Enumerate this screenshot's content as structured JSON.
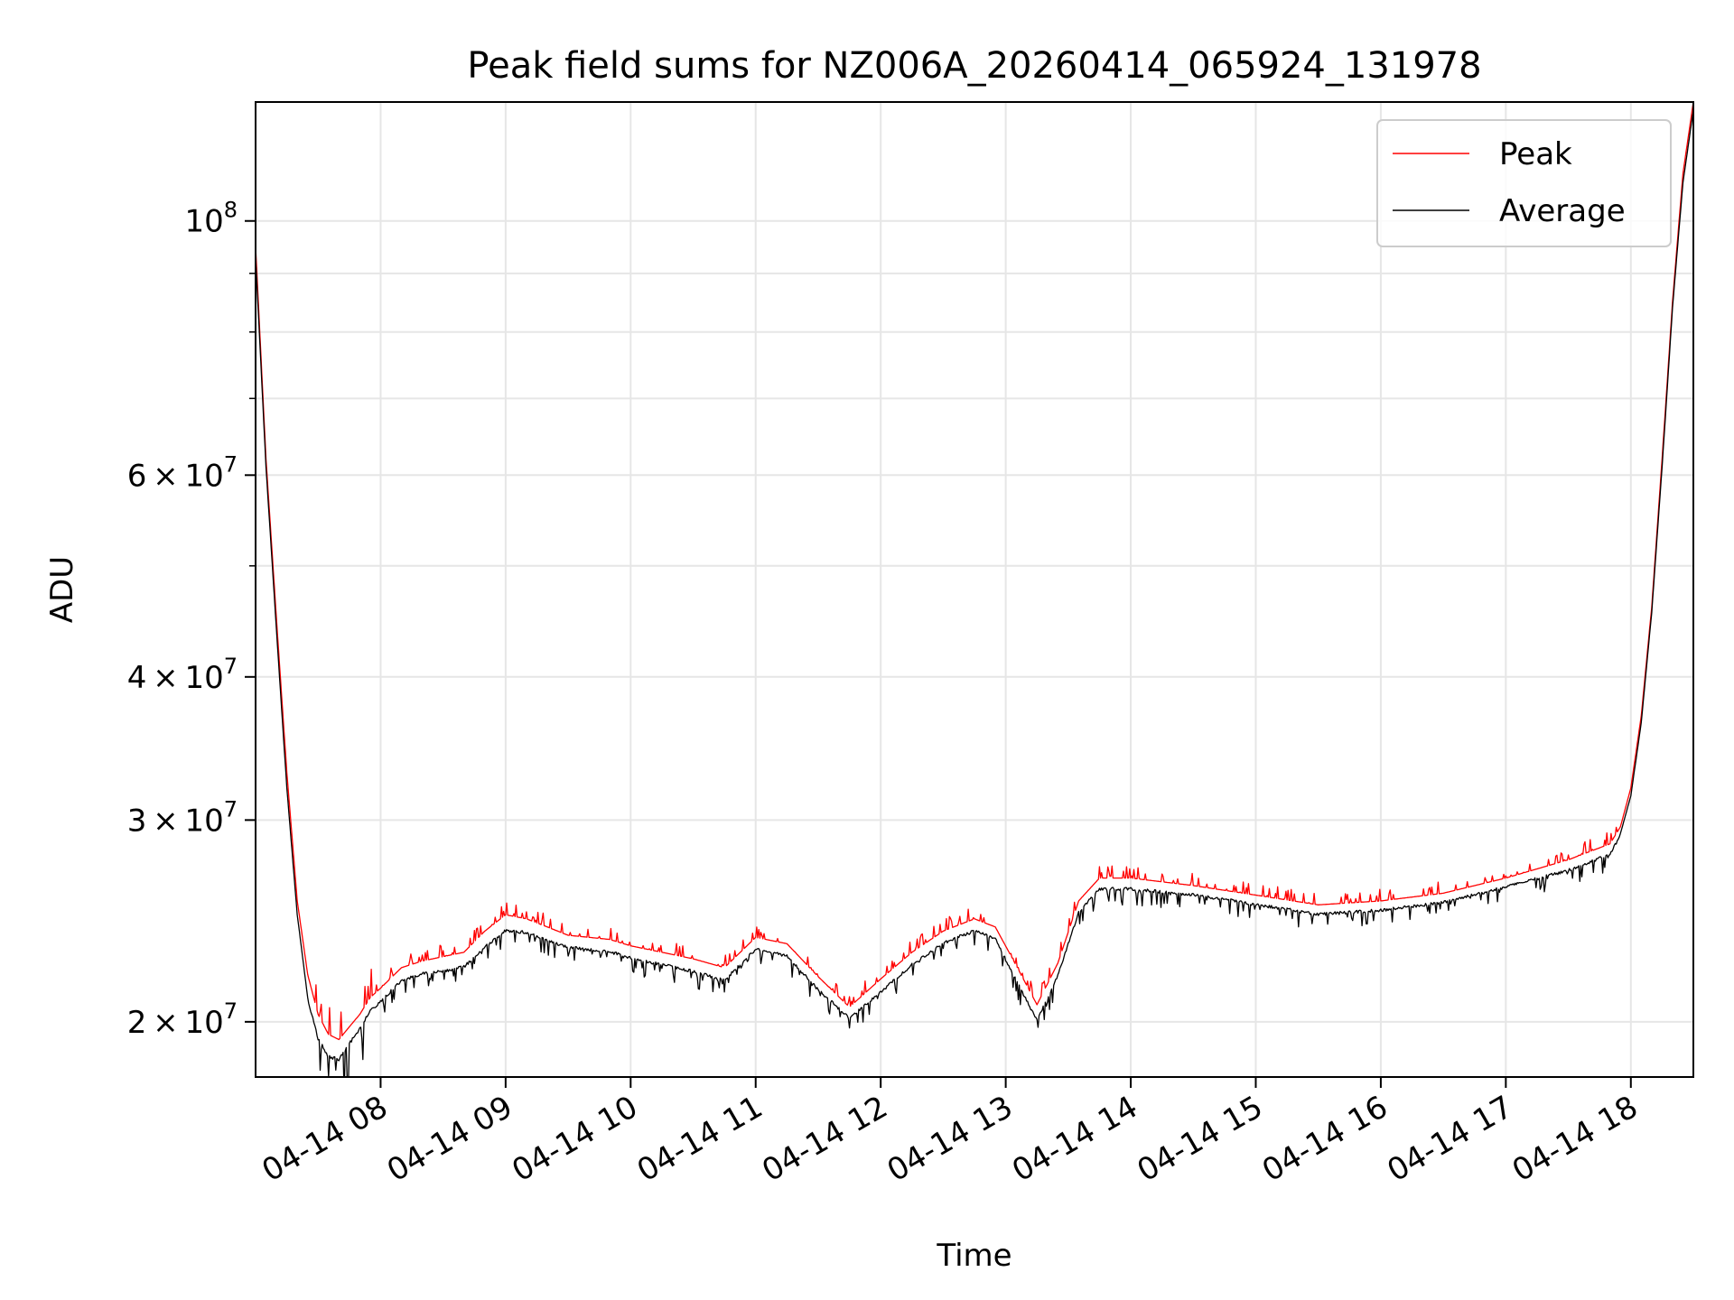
{
  "chart_data": {
    "type": "line",
    "title": "Peak field sums for NZ006A_20260414_065924_131978",
    "xlabel": "Time",
    "ylabel": "ADU",
    "yscale": "log",
    "ylim": [
      17900000,
      127000000
    ],
    "xlim": [
      "04-14 07:00",
      "04-14 18:30"
    ],
    "x_tick_labels": [
      "04-14 08",
      "04-14 09",
      "04-14 10",
      "04-14 11",
      "04-14 12",
      "04-14 13",
      "04-14 14",
      "04-14 15",
      "04-14 16",
      "04-14 17",
      "04-14 18"
    ],
    "x_ticks": [
      "04-14 08:00",
      "04-14 09:00",
      "04-14 10:00",
      "04-14 11:00",
      "04-14 12:00",
      "04-14 13:00",
      "04-14 14:00",
      "04-14 15:00",
      "04-14 16:00",
      "04-14 17:00",
      "04-14 18:00"
    ],
    "y_tick_labels": [
      {
        "value": 100000000,
        "mantissa": "",
        "base": "10",
        "exp": "8"
      },
      {
        "value": 60000000,
        "mantissa": "6",
        "base": "10",
        "exp": "7"
      },
      {
        "value": 40000000,
        "mantissa": "4",
        "base": "10",
        "exp": "7"
      },
      {
        "value": 30000000,
        "mantissa": "3",
        "base": "10",
        "exp": "7"
      },
      {
        "value": 20000000,
        "mantissa": "2",
        "base": "10",
        "exp": "7"
      }
    ],
    "y_minor_ticks": [
      50000000,
      70000000,
      80000000,
      90000000
    ],
    "grid": true,
    "legend": "top-right",
    "series": [
      {
        "name": "Peak",
        "color": "#ff0000",
        "x": [
          "04-14 07:00",
          "04-14 07:05",
          "04-14 07:10",
          "04-14 07:15",
          "04-14 07:20",
          "04-14 07:25",
          "04-14 07:30",
          "04-14 07:35",
          "04-14 07:40",
          "04-14 07:45",
          "04-14 07:50",
          "04-14 07:55",
          "04-14 08:00",
          "04-14 08:10",
          "04-14 08:20",
          "04-14 08:30",
          "04-14 08:40",
          "04-14 08:50",
          "04-14 09:00",
          "04-14 09:10",
          "04-14 09:20",
          "04-14 09:30",
          "04-14 09:40",
          "04-14 09:50",
          "04-14 10:00",
          "04-14 10:15",
          "04-14 10:30",
          "04-14 10:45",
          "04-14 11:00",
          "04-14 11:15",
          "04-14 11:30",
          "04-14 11:45",
          "04-14 12:00",
          "04-14 12:15",
          "04-14 12:30",
          "04-14 12:45",
          "04-14 12:55",
          "04-14 13:05",
          "04-14 13:15",
          "04-14 13:25",
          "04-14 13:35",
          "04-14 13:45",
          "04-14 14:00",
          "04-14 14:30",
          "04-14 15:00",
          "04-14 15:30",
          "04-14 16:00",
          "04-14 16:30",
          "04-14 17:00",
          "04-14 17:30",
          "04-14 17:50",
          "04-14 17:55",
          "04-14 18:00",
          "04-14 18:05",
          "04-14 18:10",
          "04-14 18:15",
          "04-14 18:20",
          "04-14 18:25",
          "04-14 18:30"
        ],
        "y": [
          95000000,
          62000000,
          45000000,
          33000000,
          25500000,
          22000000,
          20300000,
          19500000,
          19300000,
          19800000,
          20300000,
          21000000,
          21400000,
          22300000,
          22600000,
          22800000,
          23000000,
          24000000,
          24800000,
          24600000,
          24200000,
          23800000,
          23700000,
          23600000,
          23300000,
          23000000,
          22700000,
          22300000,
          23700000,
          23400000,
          21900000,
          20600000,
          21800000,
          23000000,
          24000000,
          24600000,
          24200000,
          22400000,
          20700000,
          22500000,
          25500000,
          26700000,
          26700000,
          26300000,
          25800000,
          25300000,
          25500000,
          25900000,
          26700000,
          27700000,
          28600000,
          29600000,
          32000000,
          37000000,
          46000000,
          62000000,
          85000000,
          110000000,
          127000000
        ]
      },
      {
        "name": "Average",
        "color": "#000000",
        "x": [
          "04-14 07:00",
          "04-14 07:05",
          "04-14 07:10",
          "04-14 07:15",
          "04-14 07:20",
          "04-14 07:25",
          "04-14 07:30",
          "04-14 07:35",
          "04-14 07:40",
          "04-14 07:45",
          "04-14 07:50",
          "04-14 07:55",
          "04-14 08:00",
          "04-14 08:10",
          "04-14 08:20",
          "04-14 08:30",
          "04-14 08:40",
          "04-14 08:50",
          "04-14 09:00",
          "04-14 09:10",
          "04-14 09:20",
          "04-14 09:30",
          "04-14 09:40",
          "04-14 09:50",
          "04-14 10:00",
          "04-14 10:15",
          "04-14 10:30",
          "04-14 10:45",
          "04-14 11:00",
          "04-14 11:15",
          "04-14 11:30",
          "04-14 11:45",
          "04-14 12:00",
          "04-14 12:15",
          "04-14 12:30",
          "04-14 12:45",
          "04-14 12:55",
          "04-14 13:05",
          "04-14 13:15",
          "04-14 13:25",
          "04-14 13:35",
          "04-14 13:45",
          "04-14 14:00",
          "04-14 14:30",
          "04-14 15:00",
          "04-14 15:30",
          "04-14 16:00",
          "04-14 16:30",
          "04-14 17:00",
          "04-14 17:30",
          "04-14 17:50",
          "04-14 17:55",
          "04-14 18:00",
          "04-14 18:05",
          "04-14 18:10",
          "04-14 18:15",
          "04-14 18:20",
          "04-14 18:25",
          "04-14 18:30"
        ],
        "y": [
          93000000,
          61000000,
          44000000,
          32000000,
          24800000,
          21000000,
          19400000,
          18700000,
          18600000,
          19200000,
          19800000,
          20500000,
          20900000,
          21800000,
          22100000,
          22200000,
          22400000,
          23300000,
          24100000,
          24000000,
          23600000,
          23300000,
          23200000,
          23100000,
          22800000,
          22500000,
          22200000,
          21800000,
          23200000,
          22900000,
          21400000,
          20200000,
          21300000,
          22500000,
          23500000,
          24100000,
          23700000,
          21800000,
          20100000,
          22000000,
          25000000,
          26200000,
          26200000,
          25900000,
          25400000,
          24900000,
          25100000,
          25500000,
          26300000,
          27200000,
          28100000,
          29200000,
          31500000,
          36500000,
          45500000,
          61000000,
          84000000,
          108000000,
          125000000
        ]
      }
    ],
    "noise_x_range": [
      "04-14 07:25",
      "04-14 17:55"
    ]
  }
}
